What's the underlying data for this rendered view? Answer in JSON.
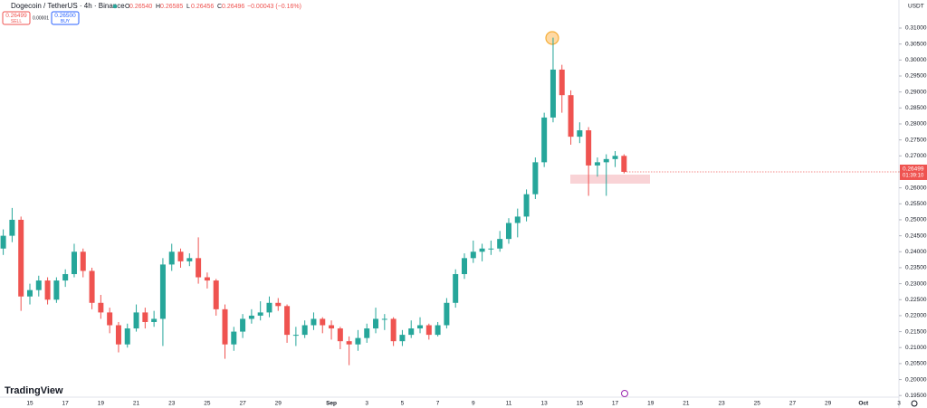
{
  "header": {
    "symbol": "Dogecoin / TetherUS · 4h · Binance",
    "ohlc": [
      {
        "key": "O",
        "value": "0.26540"
      },
      {
        "key": "H",
        "value": "0.26585"
      },
      {
        "key": "L",
        "value": "0.26456"
      },
      {
        "key": "C",
        "value": "0.26496"
      }
    ],
    "change": "−0.00043 (−0.16%)"
  },
  "trade": {
    "sell_price": "0.26499",
    "sell_label": "SELL",
    "spread": "0.00001",
    "buy_price": "0.26500",
    "buy_label": "BUY"
  },
  "currency": "USDT",
  "last_price": {
    "label": "0.26499",
    "countdown": "01:39:10"
  },
  "logo": "TradingView",
  "chart_data": {
    "type": "candlestick",
    "up_color": "#26a69a",
    "down_color": "#ef5350",
    "grid": false,
    "categories": [
      null,
      null,
      null,
      "15",
      null,
      null,
      null,
      "17",
      null,
      null,
      null,
      "19",
      null,
      null,
      null,
      "21",
      null,
      null,
      null,
      "23",
      null,
      null,
      null,
      "25",
      null,
      null,
      null,
      "27",
      null,
      null,
      null,
      "29",
      null,
      null,
      null,
      null,
      null,
      "Sep",
      null,
      null,
      null,
      "3",
      null,
      null,
      null,
      "5",
      null,
      null,
      null,
      "7",
      null,
      null,
      null,
      "9",
      null,
      null,
      null,
      "11",
      null,
      null,
      null,
      "13",
      null,
      null,
      null,
      "15",
      null,
      null,
      null,
      "17",
      null,
      null,
      null,
      "19",
      null,
      null,
      null,
      "21",
      null,
      null,
      null,
      "23",
      null,
      null,
      null,
      "25",
      null,
      null,
      null,
      "27",
      null,
      null,
      null,
      "29",
      null,
      null,
      null,
      "Oct",
      null,
      null,
      null,
      "3"
    ],
    "open": [
      0.241,
      0.245,
      0.25,
      0.226,
      0.228,
      0.231,
      0.225,
      0.231,
      0.233,
      0.24,
      0.234,
      0.224,
      0.221,
      0.217,
      0.211,
      0.216,
      0.221,
      0.218,
      0.219,
      0.236,
      0.24,
      0.237,
      0.238,
      0.232,
      0.231,
      0.222,
      0.211,
      0.215,
      0.219,
      0.22,
      0.221,
      0.224,
      0.223,
      0.214,
      0.214,
      0.217,
      0.219,
      0.217,
      0.216,
      0.212,
      0.211,
      0.213,
      0.216,
      0.219,
      0.219,
      0.212,
      0.214,
      0.216,
      0.217,
      0.214,
      0.217,
      0.224,
      0.233,
      0.238,
      0.24,
      0.241,
      0.241,
      0.244,
      0.249,
      0.251,
      0.258,
      0.268,
      0.282,
      0.297,
      0.289,
      0.276,
      0.278,
      0.267,
      0.268,
      0.269,
      0.27,
      null,
      null,
      null,
      null,
      null,
      null,
      null,
      null,
      null,
      null,
      null,
      null,
      null,
      null,
      null,
      null,
      null,
      null,
      null,
      null,
      null,
      null,
      null,
      null,
      null,
      null,
      null,
      null,
      null,
      null,
      null
    ],
    "high": [
      0.247,
      0.2537,
      0.251,
      0.23,
      0.2325,
      0.232,
      0.232,
      0.2345,
      0.2425,
      0.241,
      0.235,
      0.2265,
      0.2225,
      0.218,
      0.2175,
      0.2235,
      0.2225,
      0.2215,
      0.238,
      0.2425,
      0.241,
      0.2395,
      0.2445,
      0.2335,
      0.2315,
      0.2235,
      0.2165,
      0.2205,
      0.222,
      0.2245,
      0.226,
      0.2255,
      0.2235,
      0.2165,
      0.2185,
      0.221,
      0.2195,
      0.2185,
      0.2165,
      0.2135,
      0.2155,
      0.2175,
      0.2225,
      0.2205,
      0.2195,
      0.2155,
      0.2185,
      0.2195,
      0.2175,
      0.218,
      0.2255,
      0.2345,
      0.2395,
      0.2435,
      0.2425,
      0.2435,
      0.2465,
      0.2505,
      0.2535,
      0.2595,
      0.2695,
      0.2835,
      0.307,
      0.2985,
      0.2905,
      0.2805,
      0.279,
      0.2695,
      0.2705,
      0.2715,
      0.2705,
      null,
      null,
      null,
      null,
      null,
      null,
      null,
      null,
      null,
      null,
      null,
      null,
      null,
      null,
      null,
      null,
      null,
      null,
      null,
      null,
      null,
      null,
      null,
      null,
      null,
      null,
      null,
      null,
      null,
      null,
      null
    ],
    "low": [
      0.239,
      0.243,
      0.2215,
      0.2235,
      0.226,
      0.2235,
      0.224,
      0.229,
      0.232,
      0.232,
      0.222,
      0.219,
      0.2145,
      0.2085,
      0.21,
      0.215,
      0.216,
      0.2165,
      0.2105,
      0.234,
      0.235,
      0.2355,
      0.23,
      0.2285,
      0.22,
      0.2065,
      0.209,
      0.213,
      0.2175,
      0.2185,
      0.2195,
      0.2215,
      0.2115,
      0.2105,
      0.213,
      0.2155,
      0.2145,
      0.2125,
      0.2095,
      0.2045,
      0.209,
      0.2115,
      0.2145,
      0.2155,
      0.2105,
      0.2105,
      0.213,
      0.2145,
      0.2125,
      0.2135,
      0.216,
      0.2225,
      0.2315,
      0.2365,
      0.237,
      0.239,
      0.24,
      0.2425,
      0.2445,
      0.2495,
      0.2565,
      0.2665,
      0.2805,
      0.2835,
      0.2735,
      0.274,
      0.2575,
      0.2635,
      0.2575,
      0.2665,
      0.2645,
      null,
      null,
      null,
      null,
      null,
      null,
      null,
      null,
      null,
      null,
      null,
      null,
      null,
      null,
      null,
      null,
      null,
      null,
      null,
      null,
      null,
      null,
      null,
      null,
      null,
      null,
      null,
      null,
      null,
      null,
      null
    ],
    "close": [
      0.245,
      0.25,
      0.226,
      0.228,
      0.231,
      0.225,
      0.231,
      0.233,
      0.24,
      0.234,
      0.224,
      0.221,
      0.217,
      0.211,
      0.216,
      0.221,
      0.218,
      0.219,
      0.236,
      0.24,
      0.237,
      0.238,
      0.232,
      0.231,
      0.222,
      0.211,
      0.215,
      0.219,
      0.22,
      0.221,
      0.224,
      0.223,
      0.214,
      0.214,
      0.217,
      0.219,
      0.217,
      0.216,
      0.212,
      0.211,
      0.213,
      0.216,
      0.219,
      0.219,
      0.212,
      0.214,
      0.216,
      0.217,
      0.214,
      0.217,
      0.224,
      0.233,
      0.238,
      0.24,
      0.241,
      0.241,
      0.244,
      0.249,
      0.251,
      0.258,
      0.268,
      0.282,
      0.297,
      0.289,
      0.276,
      0.278,
      0.267,
      0.268,
      0.269,
      0.27,
      0.265,
      null,
      null,
      null,
      null,
      null,
      null,
      null,
      null,
      null,
      null,
      null,
      null,
      null,
      null,
      null,
      null,
      null,
      null,
      null,
      null,
      null,
      null,
      null,
      null,
      null,
      null,
      null,
      null,
      null,
      null,
      null
    ],
    "ylim": [
      0.19478,
      0.31878
    ],
    "yticks": [
      {
        "value": 0.195,
        "label": "0.19500"
      },
      {
        "value": 0.2,
        "label": "0.20000"
      },
      {
        "value": 0.205,
        "label": "0.20500"
      },
      {
        "value": 0.21,
        "label": "0.21000"
      },
      {
        "value": 0.215,
        "label": "0.21500"
      },
      {
        "value": 0.22,
        "label": "0.22000"
      },
      {
        "value": 0.225,
        "label": "0.22500"
      },
      {
        "value": 0.23,
        "label": "0.23000"
      },
      {
        "value": 0.235,
        "label": "0.23500"
      },
      {
        "value": 0.24,
        "label": "0.24000"
      },
      {
        "value": 0.245,
        "label": "0.24500"
      },
      {
        "value": 0.25,
        "label": "0.25000"
      },
      {
        "value": 0.255,
        "label": "0.25500"
      },
      {
        "value": 0.26,
        "label": "0.26000"
      },
      {
        "value": 0.265,
        "label": "0.26500"
      },
      {
        "value": 0.27,
        "label": "0.27000"
      },
      {
        "value": 0.275,
        "label": "0.27500"
      },
      {
        "value": 0.28,
        "label": "0.28000"
      },
      {
        "value": 0.285,
        "label": "0.28500"
      },
      {
        "value": 0.29,
        "label": "0.29000"
      },
      {
        "value": 0.295,
        "label": "0.29500"
      },
      {
        "value": 0.3,
        "label": "0.30000"
      },
      {
        "value": 0.305,
        "label": "0.30500"
      },
      {
        "value": 0.31,
        "label": "0.31000"
      }
    ]
  }
}
